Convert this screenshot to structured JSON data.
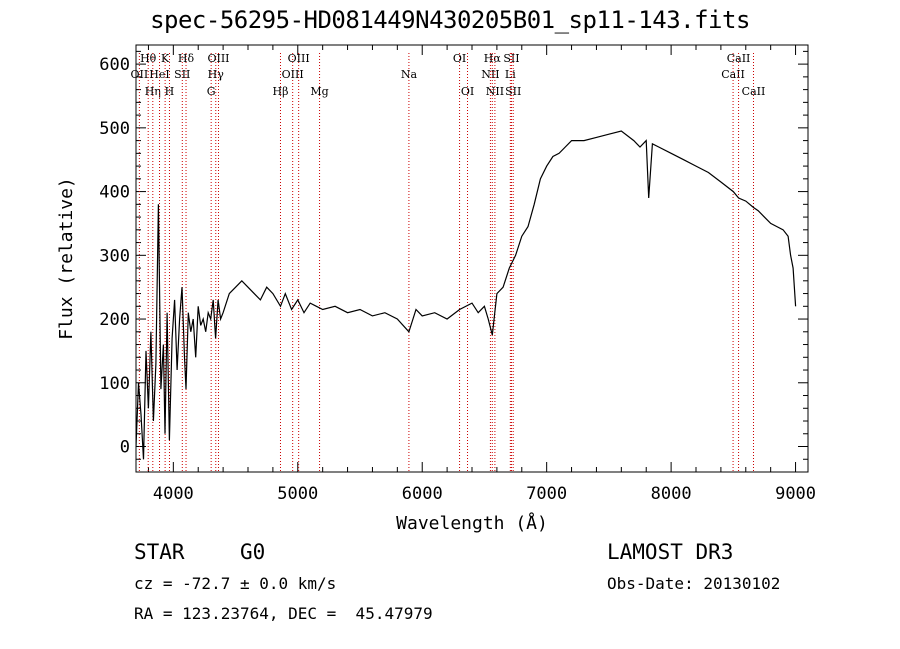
{
  "title": "spec-56295-HD081449N430205B01_sp11-143.fits",
  "footer": {
    "object_class": "STAR",
    "subclass": "G0",
    "survey": "LAMOST DR3",
    "cz": "cz = -72.7 ± 0.0 km/s",
    "obs_date": "Obs-Date: 20130102",
    "radec": "RA = 123.23764, DEC =  45.47979"
  },
  "chart_data": {
    "type": "line",
    "xlabel": "Wavelength (Å)",
    "ylabel": "Flux (relative)",
    "xlim": [
      3700,
      9100
    ],
    "ylim": [
      -40,
      630
    ],
    "xticks": [
      4000,
      5000,
      6000,
      7000,
      8000,
      9000
    ],
    "yticks": [
      0,
      100,
      200,
      300,
      400,
      500,
      600
    ],
    "line_color": "#000000",
    "marker_color": "#cc0000",
    "series": [
      {
        "x": [
          3700,
          3720,
          3740,
          3760,
          3780,
          3800,
          3820,
          3840,
          3860,
          3880,
          3900,
          3920,
          3933,
          3950,
          3968,
          3990,
          4010,
          4030,
          4050,
          4070,
          4090,
          4102,
          4120,
          4140,
          4160,
          4180,
          4200,
          4220,
          4240,
          4260,
          4280,
          4300,
          4320,
          4340,
          4360,
          4380,
          4400,
          4450,
          4500,
          4550,
          4600,
          4650,
          4700,
          4750,
          4800,
          4861,
          4900,
          4950,
          5000,
          5050,
          5100,
          5150,
          5200,
          5300,
          5400,
          5500,
          5600,
          5700,
          5800,
          5893,
          5950,
          6000,
          6100,
          6200,
          6300,
          6400,
          6450,
          6500,
          6530,
          6563,
          6600,
          6650,
          6700,
          6750,
          6800,
          6850,
          6900,
          6950,
          7000,
          7050,
          7100,
          7150,
          7200,
          7300,
          7400,
          7500,
          7600,
          7700,
          7750,
          7800,
          7820,
          7850,
          7900,
          8000,
          8100,
          8200,
          8300,
          8400,
          8500,
          8542,
          8600,
          8662,
          8700,
          8750,
          8800,
          8850,
          8900,
          8940,
          8960,
          8980,
          9000
        ],
        "y": [
          0,
          100,
          50,
          -20,
          150,
          60,
          180,
          40,
          130,
          380,
          90,
          160,
          20,
          210,
          10,
          170,
          230,
          120,
          200,
          250,
          140,
          90,
          210,
          180,
          200,
          140,
          220,
          190,
          200,
          180,
          210,
          200,
          230,
          170,
          230,
          200,
          210,
          240,
          250,
          260,
          250,
          240,
          230,
          250,
          240,
          220,
          240,
          215,
          230,
          210,
          225,
          220,
          215,
          220,
          210,
          215,
          205,
          210,
          200,
          180,
          215,
          205,
          210,
          200,
          215,
          225,
          210,
          220,
          200,
          175,
          240,
          250,
          280,
          300,
          330,
          345,
          380,
          420,
          440,
          455,
          460,
          470,
          480,
          480,
          485,
          490,
          495,
          480,
          470,
          480,
          390,
          475,
          470,
          460,
          450,
          440,
          430,
          415,
          400,
          390,
          385,
          375,
          370,
          360,
          350,
          345,
          340,
          330,
          300,
          280,
          220
        ]
      }
    ],
    "lines": [
      {
        "x": 3727,
        "label": "OII",
        "row": 1
      },
      {
        "x": 3798,
        "label": "Hθ",
        "row": 0
      },
      {
        "x": 3835,
        "label": "Hη",
        "row": 2
      },
      {
        "x": 3889,
        "label": "HeI",
        "row": 1
      },
      {
        "x": 3934,
        "label": "K",
        "row": 0
      },
      {
        "x": 3969,
        "label": "H",
        "row": 2
      },
      {
        "x": 4072,
        "label": "SII",
        "row": 1
      },
      {
        "x": 4102,
        "label": "Hδ",
        "row": 0
      },
      {
        "x": 4304,
        "label": "G",
        "row": 2
      },
      {
        "x": 4341,
        "label": "Hγ",
        "row": 1
      },
      {
        "x": 4363,
        "label": "OIII",
        "row": 0
      },
      {
        "x": 4861,
        "label": "Hβ",
        "row": 2
      },
      {
        "x": 4959,
        "label": "OIII",
        "row": 1
      },
      {
        "x": 5007,
        "label": "OIII",
        "row": 0
      },
      {
        "x": 5175,
        "label": "Mg",
        "row": 2
      },
      {
        "x": 5893,
        "label": "Na",
        "row": 1
      },
      {
        "x": 6300,
        "label": "OI",
        "row": 0
      },
      {
        "x": 6364,
        "label": "OI",
        "row": 2
      },
      {
        "x": 6548,
        "label": "NII",
        "row": 1
      },
      {
        "x": 6563,
        "label": "Hα",
        "row": 0
      },
      {
        "x": 6584,
        "label": "NII",
        "row": 2
      },
      {
        "x": 6708,
        "label": "Li",
        "row": 1
      },
      {
        "x": 6717,
        "label": "SII",
        "row": 0
      },
      {
        "x": 6731,
        "label": "SII",
        "row": 2
      },
      {
        "x": 8498,
        "label": "CaII",
        "row": 1
      },
      {
        "x": 8542,
        "label": "CaII",
        "row": 0
      },
      {
        "x": 8662,
        "label": "CaII",
        "row": 2
      }
    ]
  }
}
